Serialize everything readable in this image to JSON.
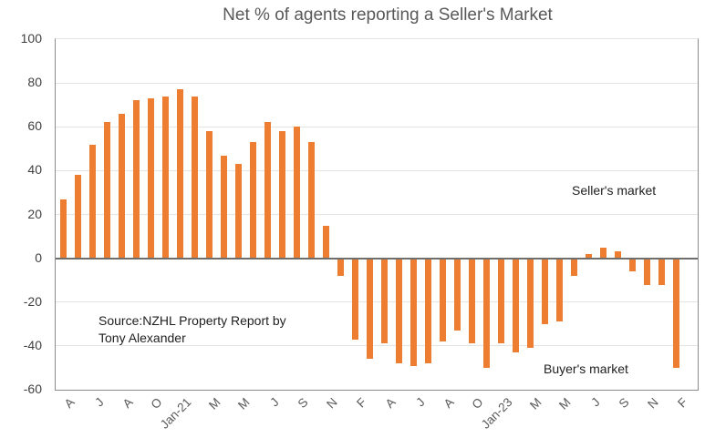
{
  "title": "Net % of agents reporting a Seller's Market",
  "annotations": {
    "sellers_market": "Seller's market",
    "buyers_market": "Buyer's market",
    "source_line1": "Source:NZHL Property Report by",
    "source_line2": "Tony Alexander"
  },
  "colors": {
    "bar": "#ED7D31",
    "title_text": "#595959",
    "y_axis_labels": "#404040",
    "x_axis_labels": "#595959",
    "gridline": "#E4E4E4",
    "plot_border": "#8C8C8C",
    "zero_line": "#6E6E6E",
    "annotation_text": "#1F1F1F",
    "background": "#FFFFFF"
  },
  "chart_data": {
    "type": "bar",
    "title": "Net % of agents reporting a Seller's Market",
    "xlabel": "",
    "ylabel": "",
    "ylim": [
      -60,
      100
    ],
    "grid": true,
    "legend": "none",
    "yticks": [
      100,
      80,
      60,
      40,
      20,
      0,
      -20,
      -40,
      -60
    ],
    "values": [
      27,
      38,
      52,
      62,
      66,
      72,
      73,
      74,
      77,
      74,
      58,
      47,
      43,
      53,
      62,
      58,
      60,
      53,
      15,
      -8,
      -37,
      -46,
      -39,
      -48,
      -49,
      -48,
      -38,
      -33,
      -39,
      -50,
      -39,
      -43,
      -41,
      -30,
      -29,
      -8,
      2,
      5,
      3,
      -6,
      -12,
      -12,
      -50
    ],
    "xtick_positions": [
      0,
      2,
      4,
      6,
      8,
      10,
      12,
      14,
      16,
      18,
      20,
      22,
      24,
      26,
      28,
      30,
      32,
      34,
      36,
      38,
      40,
      42
    ],
    "xtick_labels": [
      "A",
      "J",
      "A",
      "O",
      "Jan-21",
      "M",
      "M",
      "J",
      "S",
      "N",
      "F",
      "A",
      "J",
      "A",
      "O",
      "Jan-23",
      "M",
      "M",
      "J",
      "S",
      "N",
      "F"
    ]
  }
}
